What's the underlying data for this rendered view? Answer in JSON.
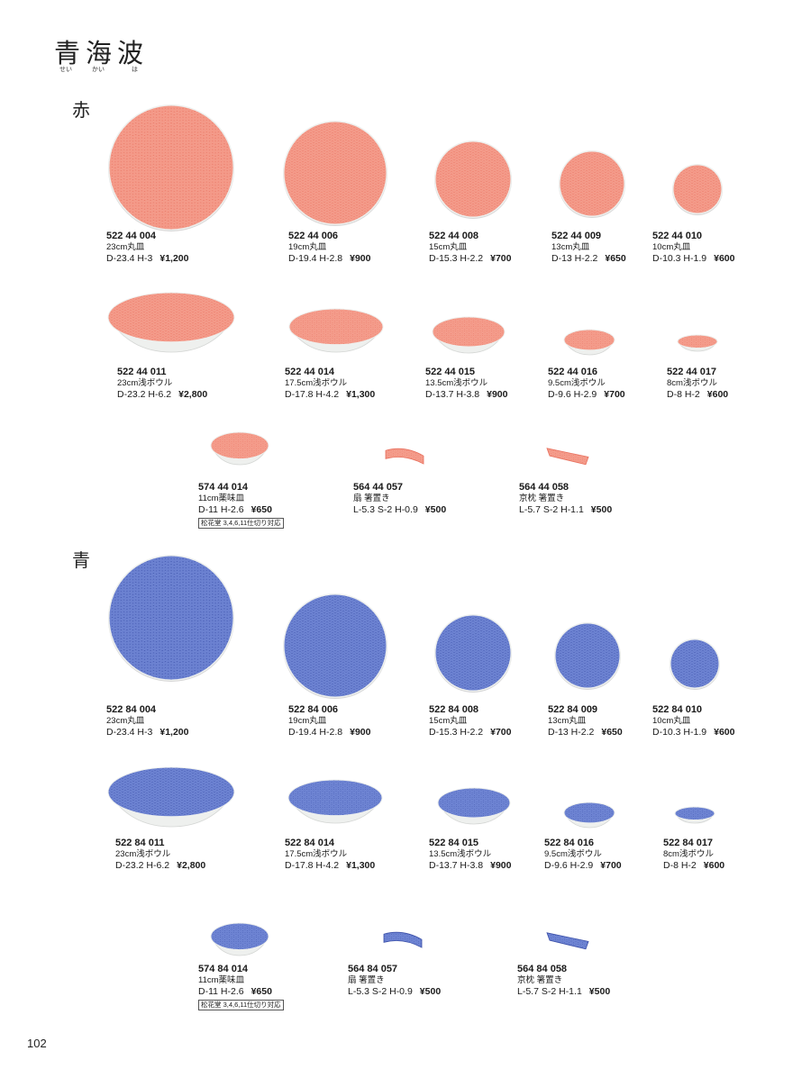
{
  "page_title": "青海波",
  "title_ruby": [
    "せい",
    "かい",
    "は"
  ],
  "page_number": "102",
  "colors": {
    "red_glaze": "#e8715f",
    "red_pattern": "#f59d8c",
    "blue_glaze": "#3a4fa8",
    "blue_pattern": "#6f85d4",
    "body": "#eef0ee"
  },
  "sections": [
    {
      "label": "赤",
      "items": [
        {
          "code": "522 44 004",
          "name": "23cm丸皿",
          "dims": "D-23.4 H-3",
          "price": "¥1,200",
          "shape": "plate"
        },
        {
          "code": "522 44 006",
          "name": "19cm丸皿",
          "dims": "D-19.4 H-2.8",
          "price": "¥900",
          "shape": "plate"
        },
        {
          "code": "522 44 008",
          "name": "15cm丸皿",
          "dims": "D-15.3 H-2.2",
          "price": "¥700",
          "shape": "plate"
        },
        {
          "code": "522 44 009",
          "name": "13cm丸皿",
          "dims": "D-13 H-2.2",
          "price": "¥650",
          "shape": "plate"
        },
        {
          "code": "522 44 010",
          "name": "10cm丸皿",
          "dims": "D-10.3 H-1.9",
          "price": "¥600",
          "shape": "plate"
        },
        {
          "code": "522 44 011",
          "name": "23cm浅ボウル",
          "dims": "D-23.2 H-6.2",
          "price": "¥2,800",
          "shape": "bowl"
        },
        {
          "code": "522 44 014",
          "name": "17.5cm浅ボウル",
          "dims": "D-17.8 H-4.2",
          "price": "¥1,300",
          "shape": "bowl"
        },
        {
          "code": "522 44 015",
          "name": "13.5cm浅ボウル",
          "dims": "D-13.7 H-3.8",
          "price": "¥900",
          "shape": "bowl"
        },
        {
          "code": "522 44 016",
          "name": "9.5cm浅ボウル",
          "dims": "D-9.6 H-2.9",
          "price": "¥700",
          "shape": "bowl"
        },
        {
          "code": "522 44 017",
          "name": "8cm浅ボウル",
          "dims": "D-8 H-2",
          "price": "¥600",
          "shape": "bowl"
        },
        {
          "code": "574 44 014",
          "name": "11cm薬味皿",
          "dims": "D-11 H-2.6",
          "price": "¥650",
          "shape": "bowl",
          "note": "松花堂 3,4,6,11仕切り対応"
        },
        {
          "code": "564 44 057",
          "name": "扇 箸置き",
          "dims": "L-5.3 S-2 H-0.9",
          "price": "¥500",
          "shape": "rest_fan"
        },
        {
          "code": "564 44 058",
          "name": "京枕 箸置き",
          "dims": "L-5.7 S-2 H-1.1",
          "price": "¥500",
          "shape": "rest_pillow"
        }
      ]
    },
    {
      "label": "青",
      "items": [
        {
          "code": "522 84 004",
          "name": "23cm丸皿",
          "dims": "D-23.4 H-3",
          "price": "¥1,200",
          "shape": "plate"
        },
        {
          "code": "522 84 006",
          "name": "19cm丸皿",
          "dims": "D-19.4 H-2.8",
          "price": "¥900",
          "shape": "plate"
        },
        {
          "code": "522 84 008",
          "name": "15cm丸皿",
          "dims": "D-15.3 H-2.2",
          "price": "¥700",
          "shape": "plate"
        },
        {
          "code": "522 84 009",
          "name": "13cm丸皿",
          "dims": "D-13 H-2.2",
          "price": "¥650",
          "shape": "plate"
        },
        {
          "code": "522 84 010",
          "name": "10cm丸皿",
          "dims": "D-10.3 H-1.9",
          "price": "¥600",
          "shape": "plate"
        },
        {
          "code": "522 84 011",
          "name": "23cm浅ボウル",
          "dims": "D-23.2 H-6.2",
          "price": "¥2,800",
          "shape": "bowl"
        },
        {
          "code": "522 84 014",
          "name": "17.5cm浅ボウル",
          "dims": "D-17.8 H-4.2",
          "price": "¥1,300",
          "shape": "bowl"
        },
        {
          "code": "522 84 015",
          "name": "13.5cm浅ボウル",
          "dims": "D-13.7 H-3.8",
          "price": "¥900",
          "shape": "bowl"
        },
        {
          "code": "522 84 016",
          "name": "9.5cm浅ボウル",
          "dims": "D-9.6 H-2.9",
          "price": "¥700",
          "shape": "bowl"
        },
        {
          "code": "522 84 017",
          "name": "8cm浅ボウル",
          "dims": "D-8 H-2",
          "price": "¥600",
          "shape": "bowl"
        },
        {
          "code": "574 84 014",
          "name": "11cm薬味皿",
          "dims": "D-11 H-2.6",
          "price": "¥650",
          "shape": "bowl",
          "note": "松花堂 3,4,6,11仕切り対応"
        },
        {
          "code": "564 84 057",
          "name": "扇 箸置き",
          "dims": "L-5.3 S-2 H-0.9",
          "price": "¥500",
          "shape": "rest_fan"
        },
        {
          "code": "564 84 058",
          "name": "京枕 箸置き",
          "dims": "L-5.7 S-2 H-1.1",
          "price": "¥500",
          "shape": "rest_pillow"
        }
      ]
    }
  ]
}
